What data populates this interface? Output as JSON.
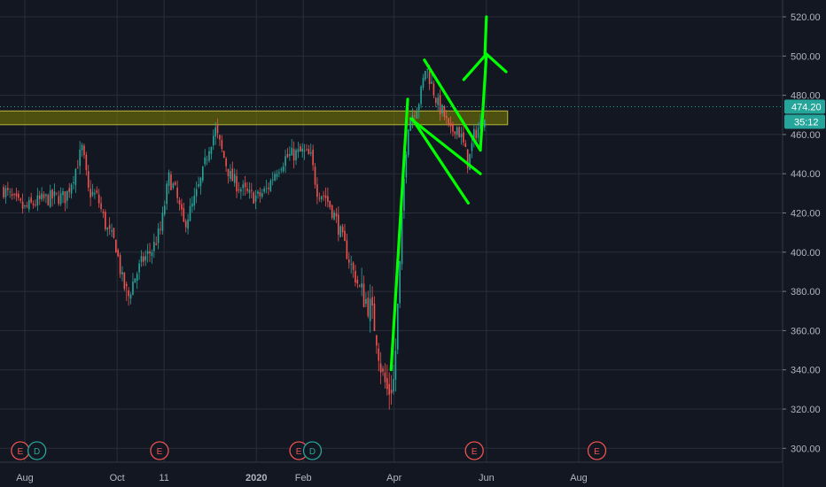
{
  "chart_data": {
    "type": "candlestick",
    "title": "",
    "xlabel": "",
    "ylabel": "",
    "ylim": [
      295,
      522
    ],
    "grid": true,
    "x_ticks": [
      "Aug",
      "Oct",
      "11",
      "2020",
      "Feb",
      "Apr",
      "Jun",
      "Aug"
    ],
    "x_tick_bold": [
      "2020"
    ],
    "y_ticks": [
      "300.00",
      "320.00",
      "340.00",
      "360.00",
      "380.00",
      "400.00",
      "420.00",
      "440.00",
      "460.00",
      "480.00",
      "500.00",
      "520.00"
    ],
    "price_label": "474.20",
    "countdown_label": "35:12",
    "last_price": 474.2,
    "up_color": "#26a69a",
    "down_color": "#ef5350",
    "series": [
      {
        "type": "close_path",
        "points": [
          [
            "2019-07-18",
            432
          ],
          [
            "2019-07-25",
            426
          ],
          [
            "2019-08-01",
            422
          ],
          [
            "2019-08-07",
            425
          ],
          [
            "2019-08-14",
            427
          ],
          [
            "2019-08-21",
            428
          ],
          [
            "2019-08-28",
            428
          ],
          [
            "2019-09-03",
            441
          ],
          [
            "2019-09-08",
            453
          ],
          [
            "2019-09-12",
            431
          ],
          [
            "2019-09-18",
            428
          ],
          [
            "2019-09-24",
            412
          ],
          [
            "2019-09-30",
            404
          ],
          [
            "2019-10-04",
            387
          ],
          [
            "2019-10-08",
            376
          ],
          [
            "2019-10-12",
            386
          ],
          [
            "2019-10-18",
            396
          ],
          [
            "2019-10-24",
            401
          ],
          [
            "2019-10-30",
            412
          ],
          [
            "2019-11-04",
            438
          ],
          [
            "2019-11-08",
            432
          ],
          [
            "2019-11-14",
            414
          ],
          [
            "2019-11-20",
            424
          ],
          [
            "2019-11-26",
            438
          ],
          [
            "2019-12-01",
            455
          ],
          [
            "2019-12-05",
            462
          ],
          [
            "2019-12-09",
            452
          ],
          [
            "2019-12-15",
            438
          ],
          [
            "2019-12-21",
            433
          ],
          [
            "2019-12-27",
            429
          ],
          [
            "2020-01-02",
            428
          ],
          [
            "2020-01-08",
            432
          ],
          [
            "2020-01-14",
            442
          ],
          [
            "2020-01-20",
            448
          ],
          [
            "2020-01-26",
            450
          ],
          [
            "2020-02-01",
            451
          ],
          [
            "2020-02-06",
            448
          ],
          [
            "2020-02-10",
            432
          ],
          [
            "2020-02-16",
            428
          ],
          [
            "2020-02-22",
            418
          ],
          [
            "2020-02-28",
            404
          ],
          [
            "2020-03-04",
            392
          ],
          [
            "2020-03-10",
            380
          ],
          [
            "2020-03-16",
            372
          ],
          [
            "2020-03-20",
            360
          ],
          [
            "2020-03-24",
            338
          ],
          [
            "2020-03-28",
            328
          ],
          [
            "2020-04-01",
            335
          ],
          [
            "2020-04-04",
            380
          ],
          [
            "2020-04-07",
            430
          ],
          [
            "2020-04-10",
            465
          ],
          [
            "2020-04-14",
            472
          ],
          [
            "2020-04-18",
            478
          ],
          [
            "2020-04-22",
            495
          ],
          [
            "2020-04-26",
            485
          ],
          [
            "2020-04-30",
            475
          ],
          [
            "2020-05-04",
            470
          ],
          [
            "2020-05-08",
            460
          ],
          [
            "2020-05-12",
            465
          ],
          [
            "2020-05-16",
            457
          ],
          [
            "2020-05-20",
            445
          ],
          [
            "2020-05-24",
            460
          ],
          [
            "2020-05-28",
            465
          ],
          [
            "2020-06-01",
            474.2
          ]
        ]
      }
    ],
    "annotations": [
      {
        "type": "rectangle",
        "x1": "2019-07-15",
        "x2": "2020-06-15",
        "y1": 465,
        "y2": 472,
        "color": "#808000"
      },
      {
        "type": "line",
        "from": [
          "2020-03-30",
          340
        ],
        "to": [
          "2020-04-10",
          478
        ],
        "color": "#00ff00"
      },
      {
        "type": "line",
        "from": [
          "2020-04-12",
          468
        ],
        "to": [
          "2020-05-28",
          440
        ],
        "color": "#00ff00"
      },
      {
        "type": "line",
        "from": [
          "2020-04-21",
          498
        ],
        "to": [
          "2020-05-28",
          452
        ],
        "color": "#00ff00"
      },
      {
        "type": "line",
        "from": [
          "2020-04-13",
          468
        ],
        "to": [
          "2020-05-20",
          425
        ],
        "color": "#00ff00"
      },
      {
        "type": "line",
        "from": [
          "2020-05-28",
          452
        ],
        "to": [
          "2020-06-01",
          501
        ],
        "color": "#00ff00"
      },
      {
        "type": "line",
        "from": [
          "2020-05-31",
          501
        ],
        "to": [
          "2020-06-01",
          520
        ],
        "color": "#00ff00"
      },
      {
        "type": "line",
        "from": [
          "2020-05-17",
          488
        ],
        "to": [
          "2020-06-01",
          501
        ],
        "color": "#00ff00"
      },
      {
        "type": "line",
        "from": [
          "2020-06-01",
          501
        ],
        "to": [
          "2020-06-14",
          492
        ],
        "color": "#00ff00"
      }
    ],
    "events": [
      {
        "date": "2019-07-29",
        "label": "E",
        "kind": "earnings"
      },
      {
        "date": "2019-08-09",
        "label": "D",
        "kind": "dividend"
      },
      {
        "date": "2019-10-29",
        "label": "E",
        "kind": "earnings"
      },
      {
        "date": "2020-01-29",
        "label": "E",
        "kind": "earnings"
      },
      {
        "date": "2020-02-07",
        "label": "D",
        "kind": "dividend"
      },
      {
        "date": "2020-05-24",
        "label": "E",
        "kind": "earnings"
      },
      {
        "date": "2020-08-13",
        "label": "E",
        "kind": "earnings"
      }
    ]
  }
}
